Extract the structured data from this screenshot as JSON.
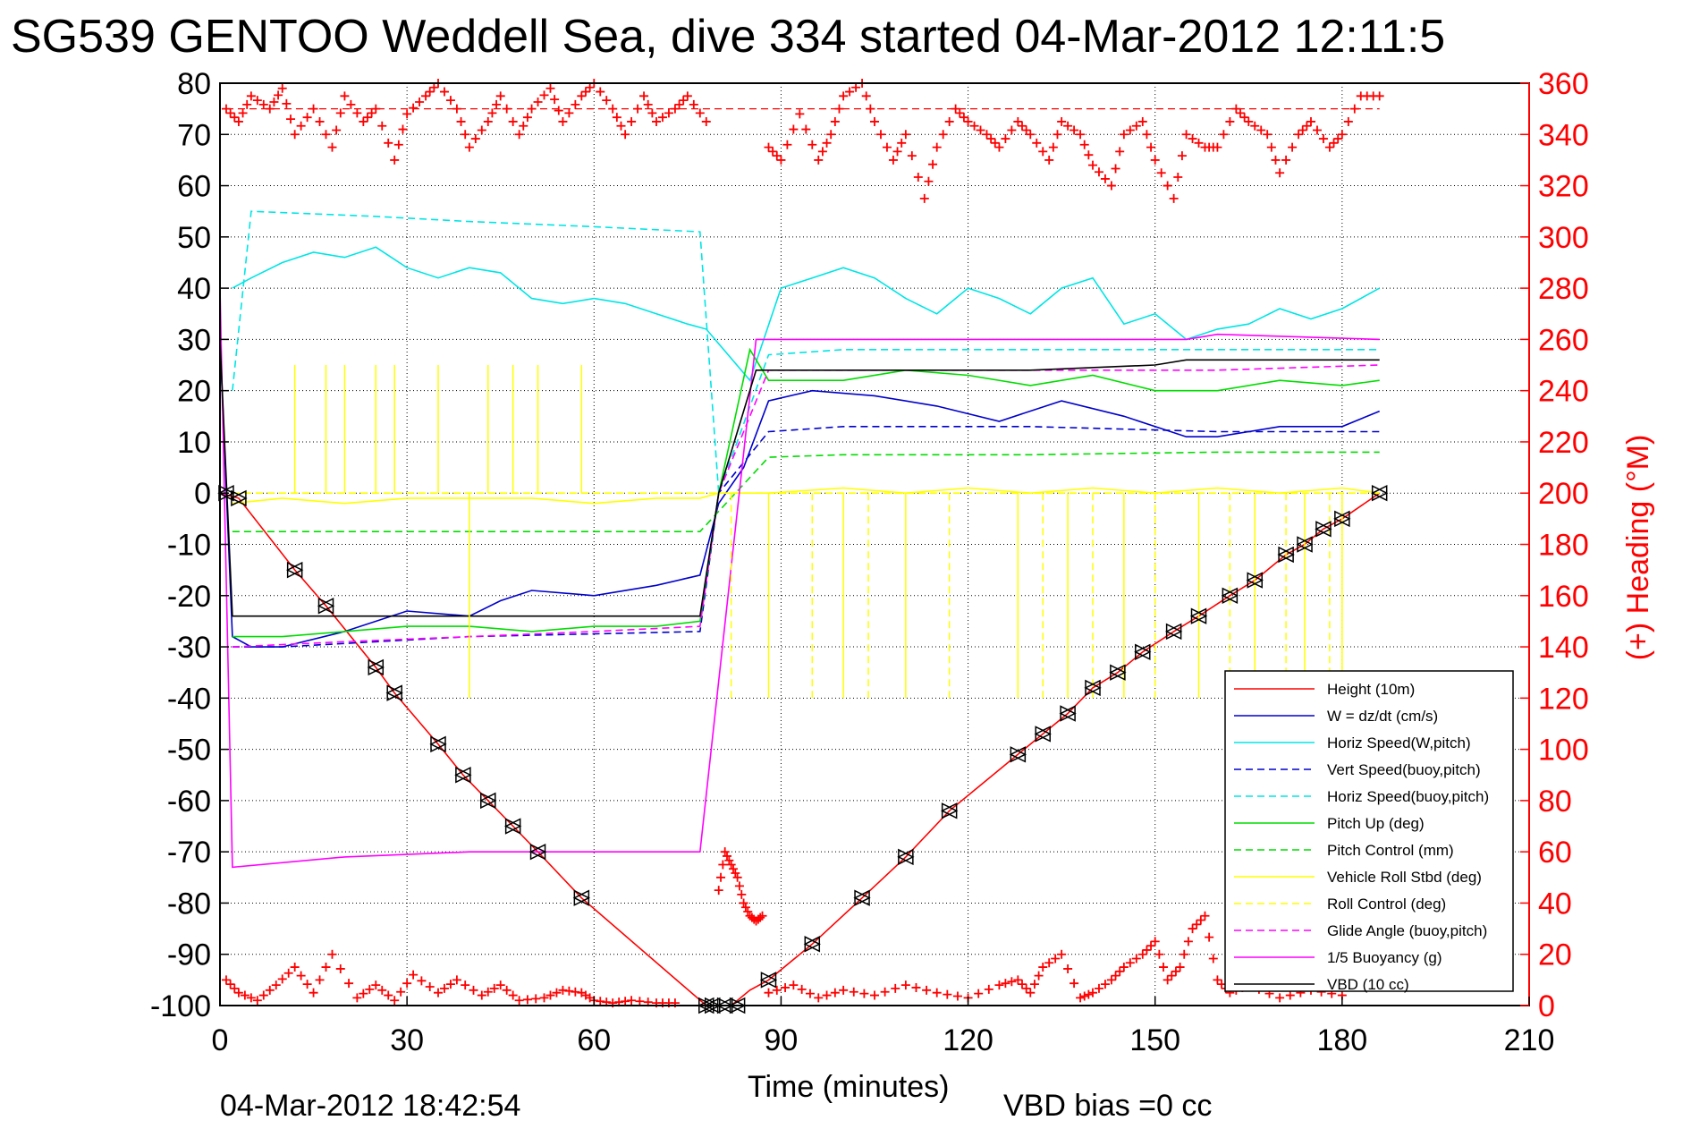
{
  "chart_data": {
    "type": "line",
    "title": "SG539 GENTOO Weddell Sea, dive 334 started 04-Mar-2012 12:11:5",
    "xlabel": "Time (minutes)",
    "ylabel_right": "(+) Heading (°M)",
    "footer_left": "04-Mar-2012 18:42:54",
    "footer_right": "VBD bias =0 cc",
    "xlim": [
      0,
      210
    ],
    "ylim": [
      -100,
      80
    ],
    "y2lim": [
      0,
      360
    ],
    "grid": true,
    "legend_position": "bottom-right",
    "x_ticks": [
      "0",
      "30",
      "60",
      "90",
      "120",
      "150",
      "180",
      "210"
    ],
    "y_ticks": [
      "80",
      "70",
      "60",
      "50",
      "40",
      "30",
      "20",
      "10",
      "0",
      "-10",
      "-20",
      "-30",
      "-40",
      "-50",
      "-60",
      "-70",
      "-80",
      "-90",
      "-100"
    ],
    "y2_ticks": [
      "360",
      "340",
      "320",
      "300",
      "280",
      "260",
      "240",
      "220",
      "200",
      "180",
      "160",
      "140",
      "120",
      "100",
      "80",
      "60",
      "40",
      "20",
      "0"
    ],
    "colors": {
      "height": "#ff0000",
      "w": "#0000cc",
      "horiz_speed": "#00e5e5",
      "pitch": "#00dd00",
      "roll": "#ffff00",
      "glide": "#ff00ff",
      "buoyancy": "#ff00ff",
      "vbd": "#000000",
      "heading": "#ff0000"
    },
    "series": [
      {
        "name": "Height (10m)",
        "key": "height",
        "style": "solid",
        "color": "#ff0000",
        "x": [
          0,
          3,
          12,
          17,
          25,
          28,
          35,
          39,
          43,
          47,
          51,
          58,
          78,
          82,
          85,
          88,
          95,
          103,
          110,
          117,
          128,
          132,
          136,
          140,
          144,
          148,
          153,
          157,
          162,
          166,
          171,
          174,
          177,
          180,
          186
        ],
        "y": [
          0,
          -1,
          -15,
          -22,
          -34,
          -39,
          -49,
          -55,
          -60,
          -65,
          -70,
          -79,
          -100,
          -100,
          -97,
          -95,
          -88,
          -79,
          -71,
          -62,
          -51,
          -47,
          -43,
          -38,
          -35,
          -31,
          -27,
          -24,
          -20,
          -17,
          -12,
          -10,
          -7,
          -5,
          0
        ]
      },
      {
        "name": "W = dz/dt (cm/s)",
        "key": "w",
        "style": "solid",
        "color": "#0000cc",
        "x": [
          0,
          2,
          5,
          10,
          20,
          30,
          40,
          45,
          50,
          60,
          70,
          77,
          80,
          84,
          88,
          95,
          105,
          115,
          125,
          135,
          145,
          155,
          160,
          170,
          180,
          186
        ],
        "y": [
          30,
          -28,
          -30,
          -30,
          -27,
          -23,
          -24,
          -21,
          -19,
          -20,
          -18,
          -16,
          -2,
          5,
          18,
          20,
          19,
          17,
          14,
          18,
          15,
          11,
          11,
          13,
          13,
          16
        ]
      },
      {
        "name": "Horiz Speed(W,pitch)",
        "key": "horiz_speed",
        "style": "solid",
        "color": "#00e5e5",
        "x": [
          2,
          5,
          10,
          15,
          20,
          25,
          30,
          35,
          40,
          45,
          50,
          55,
          60,
          65,
          70,
          75,
          78,
          85,
          90,
          95,
          100,
          105,
          110,
          115,
          120,
          125,
          130,
          135,
          140,
          145,
          150,
          155,
          160,
          165,
          170,
          175,
          180,
          186
        ],
        "y": [
          40,
          42,
          45,
          47,
          46,
          48,
          44,
          42,
          44,
          43,
          38,
          37,
          38,
          37,
          35,
          33,
          32,
          22,
          40,
          42,
          44,
          42,
          38,
          35,
          40,
          38,
          35,
          40,
          42,
          33,
          35,
          30,
          32,
          33,
          36,
          34,
          36,
          40
        ]
      },
      {
        "name": "Vert Speed(buoy,pitch)",
        "key": "vert_speed",
        "style": "dashed",
        "color": "#0000cc",
        "x": [
          2,
          10,
          40,
          77,
          80,
          88,
          100,
          130,
          160,
          186
        ],
        "y": [
          -30,
          -30,
          -28,
          -27,
          0,
          12,
          13,
          13,
          12,
          12
        ]
      },
      {
        "name": "Horiz Speed(buoy,pitch)",
        "key": "horiz_speed_buoy",
        "style": "dashed",
        "color": "#00e5e5",
        "x": [
          2,
          5,
          25,
          40,
          60,
          77,
          80,
          88,
          100,
          130,
          160,
          186
        ],
        "y": [
          20,
          55,
          54,
          53,
          52,
          51,
          0,
          27,
          28,
          28,
          28,
          28
        ]
      },
      {
        "name": "Pitch Up (deg)",
        "key": "pitch",
        "style": "solid",
        "color": "#00dd00",
        "x": [
          2,
          10,
          20,
          30,
          40,
          50,
          60,
          70,
          77,
          80,
          85,
          88,
          100,
          110,
          120,
          130,
          140,
          150,
          160,
          170,
          180,
          186
        ],
        "y": [
          -28,
          -28,
          -27,
          -26,
          -26,
          -27,
          -26,
          -26,
          -25,
          0,
          28,
          22,
          22,
          24,
          23,
          21,
          23,
          20,
          20,
          22,
          21,
          22
        ]
      },
      {
        "name": "Pitch Control (mm)",
        "key": "pitch_control",
        "style": "dashed",
        "color": "#00dd00",
        "x": [
          2,
          40,
          77,
          88,
          100,
          130,
          160,
          186
        ],
        "y": [
          -7.5,
          -7.5,
          -7.5,
          7,
          7.5,
          7.5,
          8,
          8
        ]
      },
      {
        "name": "Vehicle Roll Stbd (deg)",
        "key": "roll",
        "style": "solid",
        "color": "#ffff00",
        "x": [
          2,
          10,
          20,
          30,
          40,
          50,
          60,
          70,
          77,
          80,
          88,
          100,
          110,
          120,
          130,
          140,
          150,
          160,
          170,
          180,
          186
        ],
        "y": [
          -2,
          -1,
          -2,
          -1,
          -1,
          -1,
          -2,
          -1,
          -1,
          0,
          0,
          1,
          0,
          1,
          0,
          1,
          0,
          1,
          0,
          1,
          0
        ]
      },
      {
        "name": "Roll Control (deg)",
        "key": "roll_control",
        "style": "dashed",
        "color": "#ffff00",
        "x": [
          2,
          77,
          80,
          186
        ],
        "y": [
          0,
          0,
          0,
          0
        ]
      },
      {
        "name": "Glide Angle (buoy,pitch)",
        "key": "glide",
        "style": "dashed",
        "color": "#ff00ff",
        "x": [
          2,
          20,
          40,
          60,
          77,
          80,
          88,
          100,
          130,
          160,
          186
        ],
        "y": [
          -30,
          -29,
          -28,
          -27,
          -26,
          0,
          24,
          24,
          24,
          24,
          25
        ]
      },
      {
        "name": "1/5 Buoyancy (g)",
        "key": "buoyancy",
        "style": "solid",
        "color": "#ff00ff",
        "x": [
          0,
          2,
          20,
          40,
          60,
          77,
          86,
          100,
          130,
          155,
          160,
          186
        ],
        "y": [
          40,
          -73,
          -71,
          -70,
          -70,
          -70,
          30,
          30,
          30,
          30,
          31,
          30
        ]
      },
      {
        "name": "VBD (10 cc)",
        "key": "vbd",
        "style": "solid",
        "color": "#000000",
        "x": [
          0,
          2,
          20,
          40,
          60,
          77,
          80,
          86,
          100,
          130,
          150,
          155,
          186
        ],
        "y": [
          30,
          -24,
          -24,
          -24,
          -24,
          -24,
          0,
          24,
          24,
          24,
          25,
          26,
          26
        ]
      }
    ],
    "roll_spikes_up_x": [
      12,
      17,
      20,
      25,
      28,
      35,
      43,
      47,
      51,
      58
    ],
    "roll_spikes_up_y": 25,
    "roll_spikes_down_x": [
      40,
      82,
      88,
      95,
      100,
      104,
      110,
      117,
      128,
      132,
      136,
      140,
      145,
      150,
      157,
      162,
      166,
      171,
      174,
      178,
      180
    ],
    "roll_spikes_down_y": -40,
    "heading": {
      "name": "(+) Heading",
      "reference_value": 350,
      "segments": [
        {
          "x": [
            1,
            3,
            5,
            8,
            10,
            12,
            15,
            18,
            20,
            23,
            25,
            28,
            30,
            33,
            35,
            38,
            40,
            43,
            45,
            48,
            50,
            53,
            55,
            58,
            60,
            63,
            65,
            68,
            70,
            73,
            75,
            78
          ],
          "y": [
            350,
            345,
            355,
            350,
            358,
            340,
            350,
            335,
            355,
            345,
            350,
            330,
            348,
            355,
            360,
            350,
            335,
            345,
            355,
            340,
            350,
            358,
            345,
            355,
            360,
            350,
            340,
            355,
            345,
            350,
            355,
            345
          ]
        },
        {
          "x": [
            88,
            90,
            93,
            96,
            98,
            100,
            103,
            105,
            108,
            110,
            113,
            115,
            118,
            120,
            123,
            125,
            128,
            130,
            133,
            135,
            138,
            140,
            143,
            145,
            148,
            150,
            153,
            155,
            158,
            160,
            163,
            165,
            168,
            170,
            173,
            175,
            178,
            180,
            183,
            186
          ],
          "y": [
            335,
            330,
            348,
            330,
            340,
            355,
            360,
            345,
            330,
            340,
            315,
            335,
            350,
            345,
            340,
            335,
            345,
            340,
            330,
            345,
            340,
            328,
            320,
            340,
            345,
            330,
            315,
            340,
            335,
            335,
            350,
            345,
            340,
            325,
            340,
            345,
            335,
            340,
            355,
            355
          ]
        },
        {
          "x": [
            80,
            81,
            82,
            83,
            84,
            85,
            86,
            87
          ],
          "y": [
            45,
            60,
            55,
            50,
            40,
            35,
            33,
            35
          ]
        },
        {
          "x": [
            1,
            3,
            6,
            9,
            12,
            15,
            18,
            22,
            25,
            28,
            31,
            35,
            38,
            42,
            45,
            48,
            52,
            55,
            58,
            60,
            63,
            66,
            70,
            73
          ],
          "y": [
            10,
            5,
            2,
            8,
            15,
            5,
            20,
            3,
            8,
            2,
            12,
            5,
            10,
            4,
            8,
            2,
            3,
            6,
            5,
            2,
            1,
            2,
            1,
            1
          ]
        },
        {
          "x": [
            88,
            92,
            96,
            100,
            105,
            110,
            115,
            120,
            125,
            128,
            130,
            132,
            135,
            138,
            140,
            143,
            145,
            148,
            150,
            152,
            154,
            156,
            158,
            160,
            162,
            165,
            170,
            175,
            180
          ],
          "y": [
            5,
            8,
            3,
            6,
            4,
            8,
            5,
            3,
            8,
            10,
            5,
            15,
            20,
            3,
            5,
            10,
            15,
            20,
            25,
            10,
            15,
            30,
            35,
            10,
            5,
            8,
            3,
            6,
            4
          ]
        }
      ]
    },
    "markers": {
      "descent_x": [
        1,
        3,
        12,
        17,
        25,
        28,
        35,
        39,
        43,
        47,
        51,
        58,
        78,
        79,
        81,
        83
      ],
      "descent_y": [
        0,
        -1,
        -15,
        -22,
        -34,
        -39,
        -49,
        -55,
        -60,
        -65,
        -70,
        -79,
        -100,
        -100,
        -100,
        -100
      ],
      "ascent_x": [
        88,
        95,
        103,
        110,
        117,
        128,
        132,
        136,
        140,
        144,
        148,
        153,
        157,
        162,
        166,
        171,
        174,
        177,
        180,
        186
      ],
      "ascent_y": [
        -95,
        -88,
        -79,
        -71,
        -62,
        -51,
        -47,
        -43,
        -38,
        -35,
        -31,
        -27,
        -24,
        -20,
        -17,
        -12,
        -10,
        -7,
        -5,
        0
      ]
    }
  }
}
